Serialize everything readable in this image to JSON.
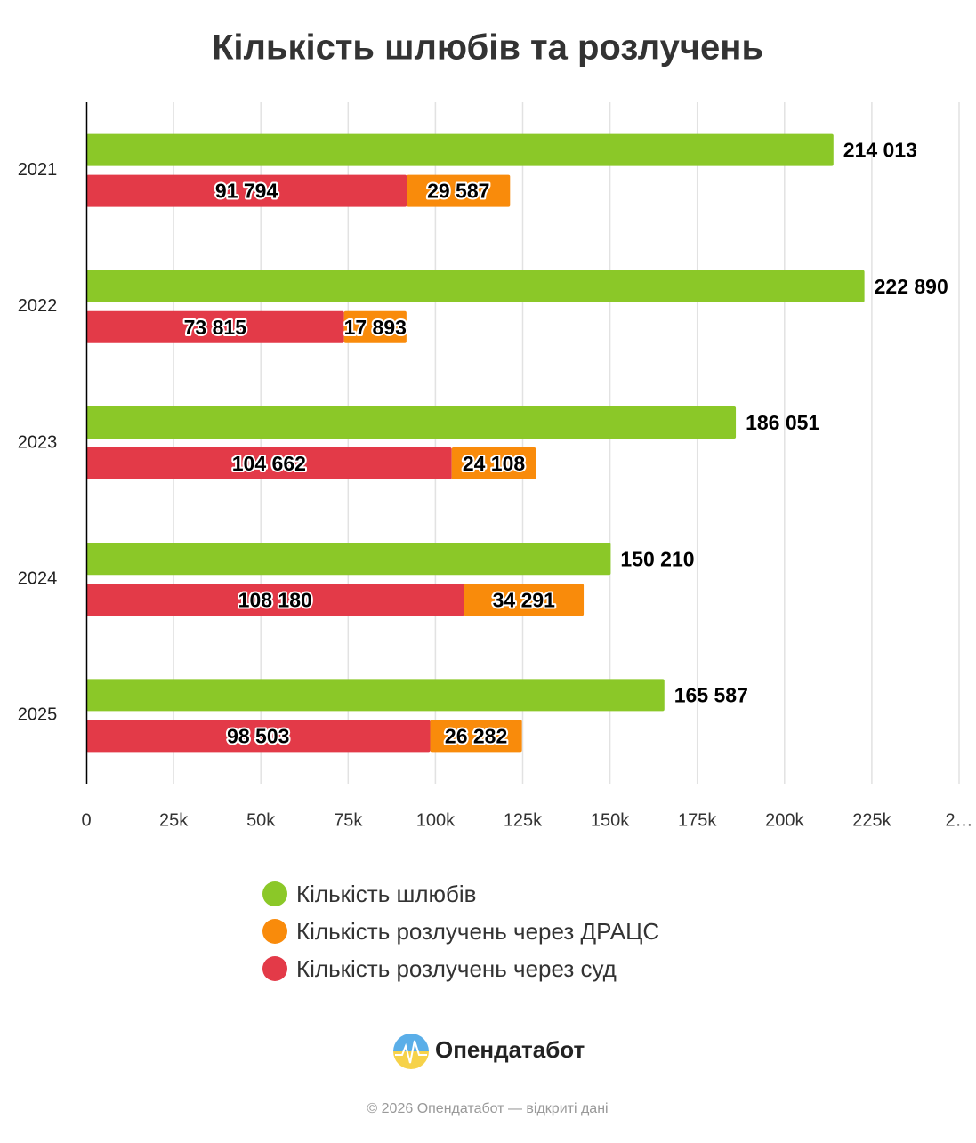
{
  "chart_data": {
    "type": "bar",
    "title": "Кількість шлюбів та розлучень",
    "categories": [
      "2021",
      "2022",
      "2023",
      "2024",
      "2025"
    ],
    "series": [
      {
        "name": "Кількість шлюбів",
        "color": "#8bc828",
        "row": 0,
        "values": [
          214013,
          222890,
          186051,
          150210,
          165587
        ],
        "value_labels": [
          "214 013",
          "222 890",
          "186 051",
          "150 210",
          "165 587"
        ]
      },
      {
        "name": "Кількість розлучень через ДРАЦС",
        "color": "#f98b0b",
        "row": 1,
        "values": [
          29587,
          17893,
          24108,
          34291,
          26282
        ],
        "value_labels": [
          "29 587",
          "17 893",
          "24 108",
          "34 291",
          "26 282"
        ]
      },
      {
        "name": "Кількість розлучень через суд",
        "color": "#e33a48",
        "row": 1,
        "values": [
          91794,
          73815,
          104662,
          108180,
          98503
        ],
        "value_labels": [
          "91 794",
          "73 815",
          "104 662",
          "108 180",
          "98 503"
        ]
      }
    ],
    "xlim": [
      0,
      250000
    ],
    "xticks": [
      0,
      {
        "value": 25000,
        "label": "25k"
      },
      {
        "value": 50000,
        "label": "50k"
      },
      {
        "value": 75000,
        "label": "75k"
      },
      {
        "value": 100000,
        "label": "100k"
      },
      {
        "value": 125000,
        "label": "125k"
      },
      {
        "value": 150000,
        "label": "150k"
      },
      {
        "value": 175000,
        "label": "175k"
      },
      {
        "value": 200000,
        "label": "200k"
      },
      {
        "value": 225000,
        "label": "225k"
      },
      {
        "value": 250000,
        "label": "2…"
      }
    ],
    "grid": true
  },
  "footer": {
    "brand": "Опендатабот",
    "copyright": "© 2026 Опендатабот — відкриті дані"
  }
}
